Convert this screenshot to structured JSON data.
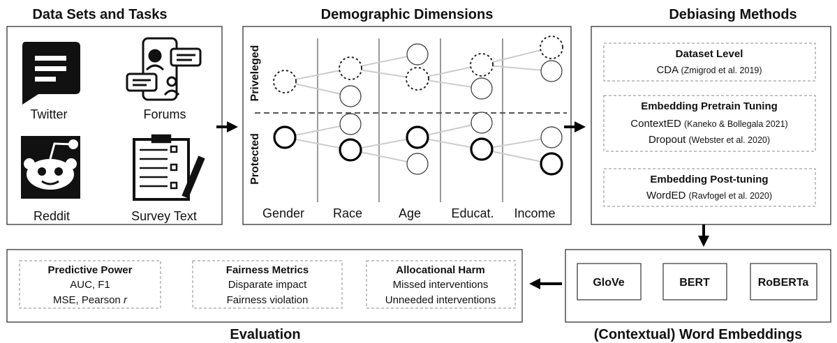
{
  "data_sets": {
    "title": "Data Sets and Tasks",
    "items": [
      "Twitter",
      "Forums",
      "Reddit",
      "Survey Text"
    ]
  },
  "demographics": {
    "title": "Demographic Dimensions",
    "rows": [
      "Priveleged",
      "Protected"
    ],
    "columns": [
      "Gender",
      "Race",
      "Age",
      "Educat.",
      "Income"
    ]
  },
  "debiasing": {
    "title": "Debiasing Methods",
    "groups": [
      {
        "title": "Dataset Level",
        "methods": [
          {
            "name": "CDA",
            "cite": "(Zmigrod et al. 2019)"
          }
        ]
      },
      {
        "title": "Embedding Pretrain Tuning",
        "methods": [
          {
            "name": "ContextED",
            "cite": "(Kaneko & Bollegala 2021)"
          },
          {
            "name": "Dropout",
            "cite": "(Webster et al. 2020)"
          }
        ]
      },
      {
        "title": "Embedding Post-tuning",
        "methods": [
          {
            "name": "WordED",
            "cite": "(Ravfogel et al. 2020)"
          }
        ]
      }
    ]
  },
  "embeddings": {
    "title": "(Contextual) Word Embeddings",
    "models": [
      "GloVe",
      "BERT",
      "RoBERTa"
    ]
  },
  "evaluation": {
    "title": "Evaluation",
    "groups": [
      {
        "title": "Predictive Power",
        "lines": [
          "AUC, F1",
          "MSE, Pearson"
        ],
        "italic_suffix": "r"
      },
      {
        "title": "Fairness Metrics",
        "lines": [
          "Disparate impact",
          "Fairness violation"
        ]
      },
      {
        "title": "Allocational Harm",
        "lines": [
          "Missed interventions",
          "Unneeded interventions"
        ]
      }
    ]
  }
}
